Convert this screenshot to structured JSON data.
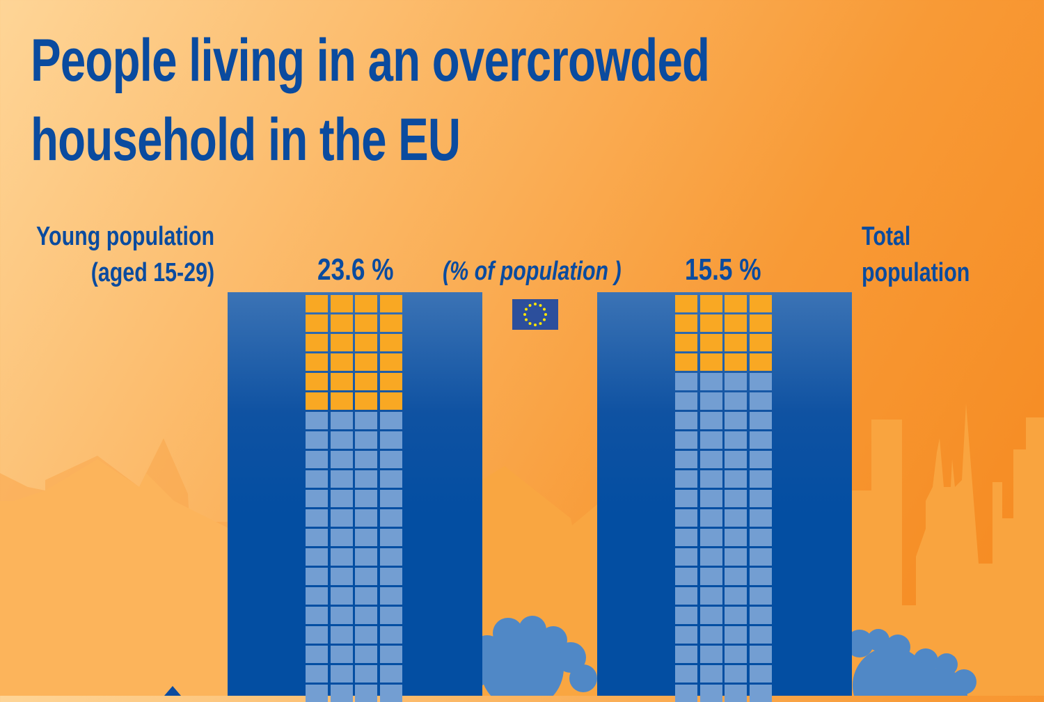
{
  "title": [
    "People living in an overcrowded",
    "household in the EU"
  ],
  "unit_note": "(% of population )",
  "colors": {
    "text": "#0a4b9f",
    "tower": "#034ea2",
    "window_filled": "#f9a823",
    "window_empty": "#739ed2",
    "tree": "#5088c6",
    "flag": "#2c4f9c",
    "stars": "#ffe600"
  },
  "icons": {
    "flag": "eu-flag-icon",
    "tree": "tree-icon"
  },
  "chart_data": {
    "type": "bar",
    "title": "People living in an overcrowded household in the EU",
    "ylabel": "(% of population )",
    "categories": [
      "Young population (aged 15-29)",
      "Total population"
    ],
    "values": [
      23.6,
      15.5
    ],
    "value_labels": [
      "23.6 %",
      "15.5 %"
    ],
    "category_labels": [
      [
        "Young population",
        "(aged 15-29)"
      ],
      [
        "Total",
        "population"
      ]
    ]
  }
}
